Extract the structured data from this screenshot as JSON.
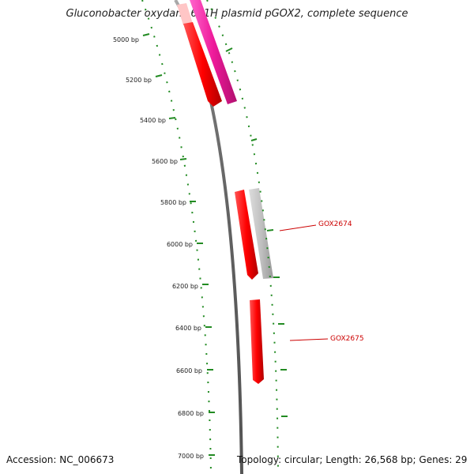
{
  "title": "Gluconobacter oxydans 621H plasmid pGOX2, complete sequence",
  "footer": {
    "accession": "Accession: NC_006673",
    "topology": "Topology: circular; Length: 26,568 bp; Genes: 29"
  },
  "ticks": [
    {
      "label": "5000 bp"
    },
    {
      "label": "5200 bp"
    },
    {
      "label": "5400 bp"
    },
    {
      "label": "5600 bp"
    },
    {
      "label": "5800 bp"
    },
    {
      "label": "6000 bp"
    },
    {
      "label": "6200 bp"
    },
    {
      "label": "6400 bp"
    },
    {
      "label": "6600 bp"
    },
    {
      "label": "6800 bp"
    },
    {
      "label": "7000 bp"
    }
  ],
  "gene_labels": {
    "gox2674": "GOX2674",
    "gox2675": "GOX2675"
  },
  "colors": {
    "backbone": "#777777",
    "gene_red": "#ee0000",
    "gene_pink": "#ee1a9a",
    "gene_grey": "#bbbbbb",
    "gene_lightpink": "#ffc6c6",
    "ruler": "#228b22",
    "label_line": "#cc0000"
  }
}
